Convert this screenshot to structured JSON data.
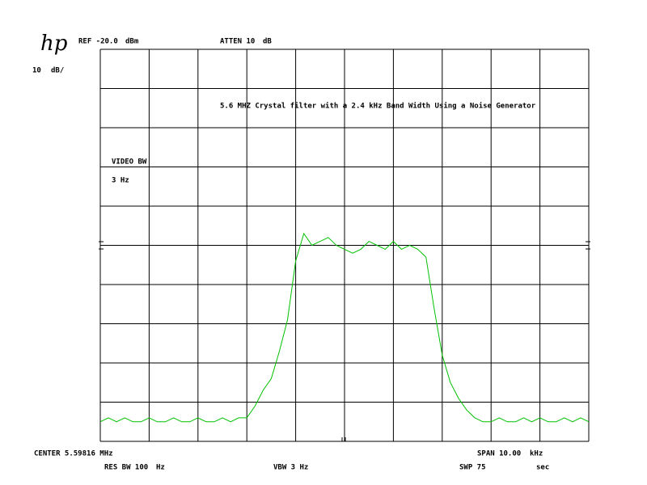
{
  "chart_data": {
    "type": "line",
    "logo": "hp",
    "ref_level": "REF -20.0",
    "ref_unit": "dBm",
    "atten": "ATTEN 10",
    "atten_unit": "dB",
    "scale": "10",
    "scale_unit": "dB/",
    "title": "5.6 MHZ Crystal filter with a 2.4 kHz Band Width Using a Noise Generator",
    "video_bw_label": "VIDEO BW",
    "video_bw_value": "3 Hz",
    "center": "CENTER 5.59816 MHz",
    "span": "SPAN 10.00",
    "span_unit": "kHz",
    "res_bw": "RES BW 100",
    "res_bw_unit": "Hz",
    "vbw": "VBW 3 Hz",
    "sweep": "SWP 75",
    "sweep_unit": "sec",
    "ylim": [
      -120,
      -20
    ],
    "grid": true,
    "series": [
      {
        "color": "#00c000",
        "values": [
          -115,
          -114,
          -115,
          -114,
          -115,
          -115,
          -114,
          -115,
          -115,
          -114,
          -115,
          -115,
          -114,
          -115,
          -115,
          -114,
          -115,
          -114,
          -114,
          -111,
          -107,
          -104,
          -97,
          -89,
          -74,
          -67,
          -70,
          -69,
          -68,
          -70,
          -71,
          -72,
          -71,
          -69,
          -70,
          -71,
          -69,
          -71,
          -70,
          -71,
          -73,
          -86,
          -98,
          -105,
          -109,
          -112,
          -114,
          -115,
          -115,
          -114,
          -115,
          -115,
          -114,
          -115,
          -114,
          -115,
          -115,
          -114,
          -115,
          -114,
          -115
        ]
      }
    ]
  }
}
